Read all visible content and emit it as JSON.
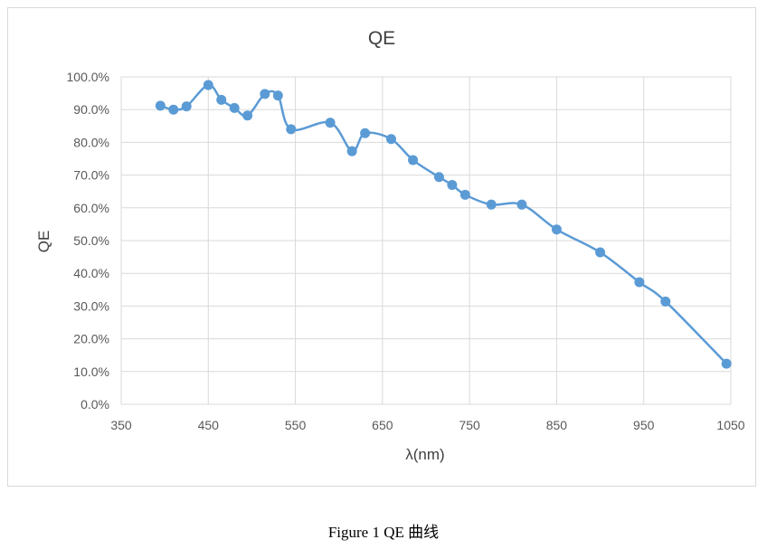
{
  "chart_data": {
    "type": "line",
    "title": "QE",
    "xlabel": "λ(nm)",
    "ylabel": "QE",
    "xlim": [
      350,
      1050
    ],
    "ylim": [
      0,
      100
    ],
    "x_ticks": [
      "350",
      "450",
      "550",
      "650",
      "750",
      "850",
      "950",
      "1050"
    ],
    "y_ticks": [
      "0.0%",
      "10.0%",
      "20.0%",
      "30.0%",
      "40.0%",
      "50.0%",
      "60.0%",
      "70.0%",
      "80.0%",
      "90.0%",
      "100.0%"
    ],
    "grid": true,
    "smooth": true,
    "line_color": "#5b9bd5",
    "series": [
      {
        "points": [
          [
            395,
            91.2
          ],
          [
            410,
            90.0
          ],
          [
            425,
            91.0
          ],
          [
            450,
            97.5
          ],
          [
            465,
            93.0
          ],
          [
            480,
            90.5
          ],
          [
            495,
            88.2
          ],
          [
            515,
            94.8
          ],
          [
            530,
            94.3
          ],
          [
            545,
            84.0
          ],
          [
            590,
            86.0
          ],
          [
            615,
            77.3
          ],
          [
            630,
            82.8
          ],
          [
            660,
            81.0
          ],
          [
            685,
            74.6
          ],
          [
            715,
            69.4
          ],
          [
            730,
            67.0
          ],
          [
            745,
            64.0
          ],
          [
            775,
            61.0
          ],
          [
            810,
            61.0
          ],
          [
            850,
            53.4
          ],
          [
            900,
            46.4
          ],
          [
            945,
            37.3
          ],
          [
            975,
            31.4
          ],
          [
            1045,
            12.4
          ]
        ]
      }
    ]
  },
  "caption": "Figure 1 QE 曲线"
}
